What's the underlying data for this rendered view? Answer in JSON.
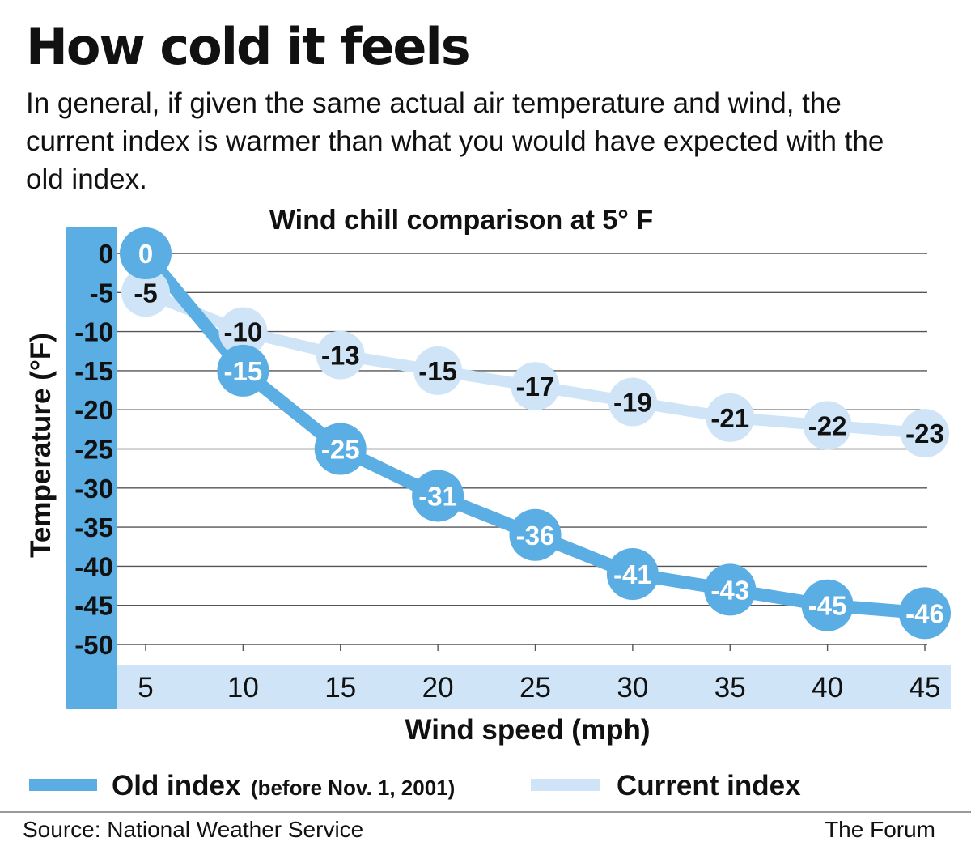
{
  "headline": "How cold it feels",
  "intro": "In general, if given the same actual air temperature and wind, the current index is warmer than what you would have expected with the old index.",
  "colors": {
    "old": "#5baee3",
    "current": "#cfe5f7",
    "axis_band": "#5baee3",
    "x_band": "#cfe5f7",
    "grid": "#555555"
  },
  "chart_data": {
    "type": "line",
    "title": "Wind chill comparison at 5° F",
    "xlabel": "Wind speed (mph)",
    "ylabel": "Temperature (°F)",
    "x": [
      5,
      10,
      15,
      20,
      25,
      30,
      35,
      40,
      45
    ],
    "y_ticks": [
      0,
      -5,
      -10,
      -15,
      -20,
      -25,
      -30,
      -35,
      -40,
      -45,
      -50
    ],
    "ylim": [
      -50,
      0
    ],
    "grid": true,
    "series": [
      {
        "name": "Old index",
        "name_note": "(before Nov. 1, 2001)",
        "values": [
          0,
          -15,
          -25,
          -31,
          -36,
          -41,
          -43,
          -45,
          -46
        ]
      },
      {
        "name": "Current index",
        "values": [
          -5,
          -10,
          -13,
          -15,
          -17,
          -19,
          -21,
          -22,
          -23
        ]
      }
    ]
  },
  "footer": {
    "source": "Source: National Weather Service",
    "credit": "The Forum"
  }
}
